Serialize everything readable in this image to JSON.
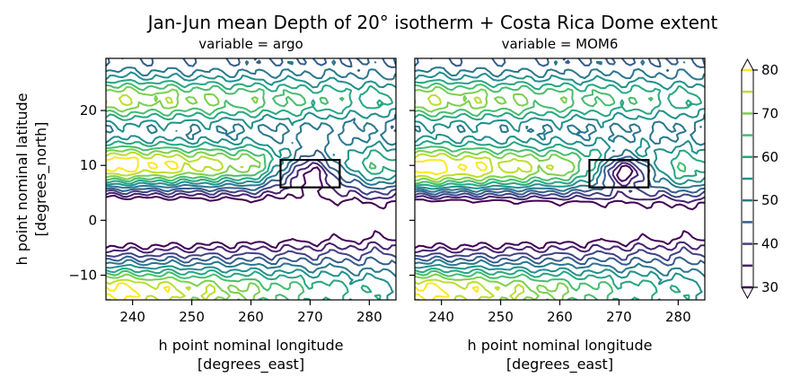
{
  "figure": {
    "title": "Jan-Jun mean Depth of 20° isotherm + Costa Rica Dome extent"
  },
  "chart_data": {
    "type": "contour",
    "panels": [
      {
        "subtitle": "variable = argo",
        "xlabel_line1": "h point nominal longitude",
        "xlabel_line2": "[degrees_east]",
        "ylabel_line1": "h point nominal latitude",
        "ylabel_line2": "[degrees_north]",
        "xlim": [
          235.5,
          284.5
        ],
        "ylim": [
          -14.5,
          29.5
        ],
        "xticks": [
          240,
          250,
          260,
          270,
          280
        ],
        "yticks": [
          -10,
          0,
          10,
          20
        ],
        "dome_box": {
          "lon": [
            265,
            275
          ],
          "lat": [
            6,
            11
          ]
        },
        "dome_center": [
          270,
          9
        ],
        "dome_min": 35,
        "dome_radii": [
          6.0,
          3.6
        ],
        "shallow_band_lat": 10.0,
        "shallow_band_width": 4.0
      },
      {
        "subtitle": "variable = MOM6",
        "xlabel_line1": "h point nominal longitude",
        "xlabel_line2": "[degrees_east]",
        "ylabel_line1": "",
        "ylabel_line2": "",
        "xlim": [
          235.5,
          284.5
        ],
        "ylim": [
          -14.5,
          29.5
        ],
        "xticks": [
          240,
          250,
          260,
          270,
          280
        ],
        "yticks": [
          -10,
          0,
          10,
          20
        ],
        "dome_box": {
          "lon": [
            265,
            275
          ],
          "lat": [
            6,
            11
          ]
        },
        "dome_center": [
          271,
          9
        ],
        "dome_min": 40,
        "dome_radii": [
          5.0,
          2.8
        ],
        "shallow_band_lat": 9.5,
        "shallow_band_width": 4.5
      }
    ],
    "contour_levels": [
      30,
      35,
      40,
      45,
      50,
      55,
      60,
      65,
      70,
      75,
      80
    ],
    "colorbar": {
      "min": 30,
      "max": 80,
      "ticks": [
        30,
        40,
        50,
        60,
        70,
        80
      ],
      "extend": "both",
      "colormap": "viridis"
    }
  }
}
